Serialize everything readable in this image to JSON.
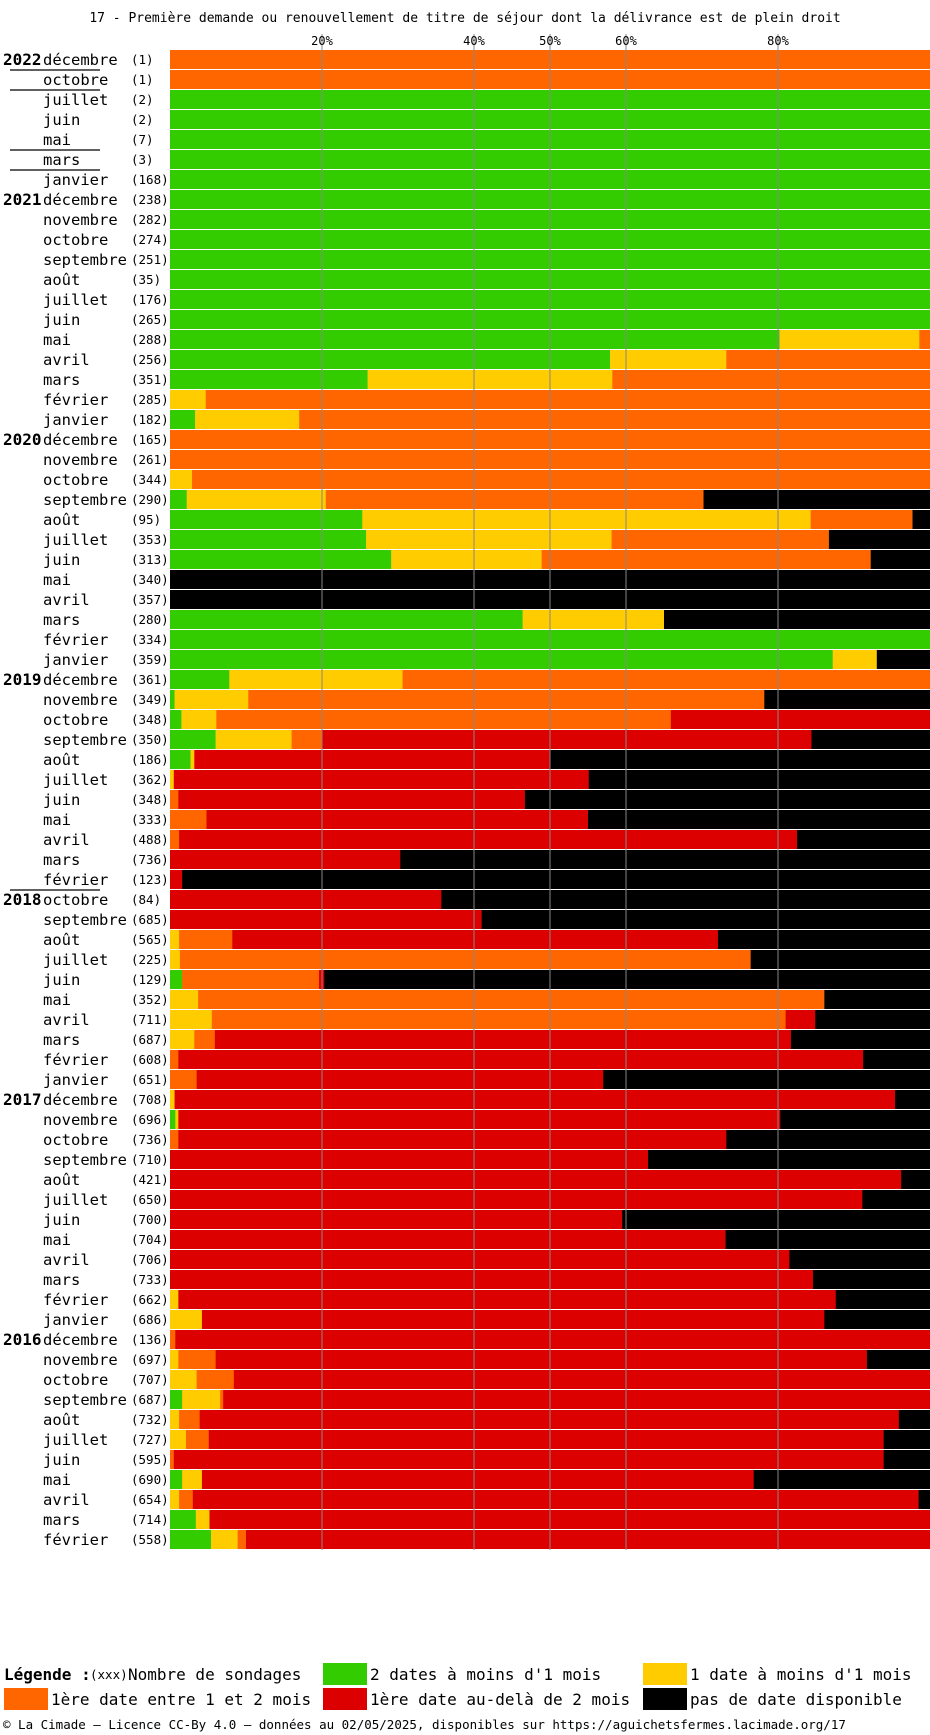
{
  "colors": {
    "two_dates": "#33cc00",
    "one_date": "#ffcc00",
    "first_1_2": "#ff6600",
    "first_over_2": "#dd0000",
    "none": "#000000",
    "grid": "#888888"
  },
  "legend": {
    "title": "Légende :",
    "count_label": "(xxx)",
    "count_text": "Nombre de sondages",
    "items": [
      {
        "key": "two_dates",
        "label": "2 dates à moins d'1 mois"
      },
      {
        "key": "one_date",
        "label": "1 date à moins d'1 mois"
      },
      {
        "key": "first_1_2",
        "label": "1ère date entre 1 et 2 mois"
      },
      {
        "key": "first_over_2",
        "label": "1ère date au-delà de 2 mois"
      },
      {
        "key": "none",
        "label": "pas de date disponible"
      }
    ]
  },
  "footer": "© La Cimade – Licence CC-By 4.0 – données au 02/05/2025, disponibles sur https://aguichetsfermes.lacimade.org/17",
  "chart_data": {
    "type": "bar",
    "orientation": "horizontal-stacked-percent",
    "title": "17 - Première demande ou renouvellement de titre de séjour dont la délivrance est de plein droit",
    "x_ticks": [
      "20%",
      "40%",
      "50%",
      "60%",
      "80%"
    ],
    "x_tick_values": [
      20,
      40,
      50,
      60,
      80
    ],
    "xlim": [
      0,
      100
    ],
    "series_order": [
      "two_dates",
      "one_date",
      "first_1_2",
      "first_over_2",
      "none"
    ],
    "rows": [
      {
        "year": "2022",
        "month": "décembre",
        "count": "(1)",
        "values": [
          0,
          0,
          100,
          0,
          0
        ]
      },
      {
        "sep": true
      },
      {
        "month": "octobre",
        "count": "(1)",
        "values": [
          0,
          0,
          100,
          0,
          0
        ]
      },
      {
        "sep": true
      },
      {
        "month": "juillet",
        "count": "(2)",
        "values": [
          100,
          0,
          0,
          0,
          0
        ]
      },
      {
        "month": "juin",
        "count": "(2)",
        "values": [
          100,
          0,
          0,
          0,
          0
        ]
      },
      {
        "month": "mai",
        "count": "(7)",
        "values": [
          100,
          0,
          0,
          0,
          0
        ]
      },
      {
        "sep": true
      },
      {
        "month": "mars",
        "count": "(3)",
        "values": [
          100,
          0,
          0,
          0,
          0
        ]
      },
      {
        "sep": true
      },
      {
        "month": "janvier",
        "count": "(168)",
        "values": [
          100,
          0,
          0,
          0,
          0
        ]
      },
      {
        "year": "2021",
        "month": "décembre",
        "count": "(238)",
        "values": [
          100,
          0,
          0,
          0,
          0
        ]
      },
      {
        "month": "novembre",
        "count": "(282)",
        "values": [
          100,
          0,
          0,
          0,
          0
        ]
      },
      {
        "month": "octobre",
        "count": "(274)",
        "values": [
          100,
          0,
          0,
          0,
          0
        ]
      },
      {
        "month": "septembre",
        "count": "(251)",
        "values": [
          100,
          0,
          0,
          0,
          0
        ]
      },
      {
        "month": "août",
        "count": "(35)",
        "values": [
          100,
          0,
          0,
          0,
          0
        ]
      },
      {
        "month": "juillet",
        "count": "(176)",
        "values": [
          100,
          0,
          0,
          0,
          0
        ]
      },
      {
        "month": "juin",
        "count": "(265)",
        "values": [
          100,
          0,
          0,
          0,
          0
        ]
      },
      {
        "month": "mai",
        "count": "(288)",
        "values": [
          80.2,
          18.4,
          1.4,
          0,
          0
        ]
      },
      {
        "month": "avril",
        "count": "(256)",
        "values": [
          57.9,
          15.3,
          26.8,
          0,
          0
        ]
      },
      {
        "month": "mars",
        "count": "(351)",
        "values": [
          26,
          32.2,
          41.8,
          0,
          0
        ]
      },
      {
        "month": "février",
        "count": "(285)",
        "values": [
          0,
          4.7,
          95.3,
          0,
          0
        ]
      },
      {
        "month": "janvier",
        "count": "(182)",
        "values": [
          3.3,
          13.7,
          83,
          0,
          0
        ]
      },
      {
        "year": "2020",
        "month": "décembre",
        "count": "(165)",
        "values": [
          0,
          0,
          100,
          0,
          0
        ]
      },
      {
        "month": "novembre",
        "count": "(261)",
        "values": [
          0,
          0,
          100,
          0,
          0
        ]
      },
      {
        "month": "octobre",
        "count": "(344)",
        "values": [
          0,
          2.9,
          97.1,
          0,
          0
        ]
      },
      {
        "month": "septembre",
        "count": "(290)",
        "values": [
          2.2,
          18.3,
          49.7,
          0,
          29.8
        ]
      },
      {
        "month": "août",
        "count": "(95)",
        "values": [
          25.3,
          59,
          13.4,
          0,
          2.3
        ]
      },
      {
        "month": "juillet",
        "count": "(353)",
        "values": [
          25.8,
          32.3,
          28.6,
          0,
          13.3
        ]
      },
      {
        "month": "juin",
        "count": "(313)",
        "values": [
          29.1,
          19.8,
          43.3,
          0,
          7.8
        ]
      },
      {
        "month": "mai",
        "count": "(340)",
        "values": [
          0,
          0,
          0,
          0,
          100
        ]
      },
      {
        "month": "avril",
        "count": "(357)",
        "values": [
          0,
          0,
          0,
          0,
          100
        ]
      },
      {
        "month": "mars",
        "count": "(280)",
        "values": [
          46.4,
          18.6,
          0,
          0,
          35
        ]
      },
      {
        "month": "février",
        "count": "(334)",
        "values": [
          100,
          0,
          0,
          0,
          0
        ]
      },
      {
        "month": "janvier",
        "count": "(359)",
        "values": [
          87.2,
          5.8,
          0,
          0,
          7
        ]
      },
      {
        "year": "2019",
        "month": "décembre",
        "count": "(361)",
        "values": [
          7.8,
          22.8,
          69.4,
          0,
          0
        ]
      },
      {
        "month": "novembre",
        "count": "(349)",
        "values": [
          0.6,
          9.7,
          67.9,
          0,
          21.8
        ]
      },
      {
        "month": "octobre",
        "count": "(348)",
        "values": [
          1.5,
          4.6,
          59.8,
          34.1,
          0
        ]
      },
      {
        "month": "septembre",
        "count": "(350)",
        "values": [
          6,
          10,
          4,
          64.4,
          15.6
        ]
      },
      {
        "month": "août",
        "count": "(186)",
        "values": [
          2.7,
          0.5,
          0,
          46.8,
          50
        ]
      },
      {
        "month": "juillet",
        "count": "(362)",
        "values": [
          0,
          0.5,
          0,
          54.6,
          44.9
        ]
      },
      {
        "month": "juin",
        "count": "(348)",
        "values": [
          0,
          0,
          1.1,
          45.6,
          53.3
        ]
      },
      {
        "month": "mai",
        "count": "(333)",
        "values": [
          0,
          0,
          4.8,
          50.2,
          45
        ]
      },
      {
        "month": "avril",
        "count": "(488)",
        "values": [
          0,
          0,
          1.2,
          81.3,
          17.5
        ]
      },
      {
        "month": "mars",
        "count": "(736)",
        "values": [
          0,
          0,
          0,
          30.3,
          69.7
        ]
      },
      {
        "month": "février",
        "count": "(123)",
        "values": [
          0,
          0,
          0,
          1.6,
          98.4
        ]
      },
      {
        "sep": true
      },
      {
        "year": "2018",
        "month": "octobre",
        "count": "(84)",
        "values": [
          0,
          0,
          0,
          35.7,
          64.3
        ]
      },
      {
        "month": "septembre",
        "count": "(685)",
        "values": [
          0,
          0,
          0,
          41,
          59
        ]
      },
      {
        "month": "août",
        "count": "(565)",
        "values": [
          0,
          1.2,
          7,
          63.9,
          27.9
        ]
      },
      {
        "month": "juillet",
        "count": "(225)",
        "values": [
          0,
          1.3,
          75.1,
          0,
          23.6
        ]
      },
      {
        "month": "juin",
        "count": "(129)",
        "values": [
          1.6,
          0,
          18,
          0.7,
          79.7
        ]
      },
      {
        "month": "mai",
        "count": "(352)",
        "values": [
          0,
          3.7,
          82.4,
          0,
          13.9
        ]
      },
      {
        "month": "avril",
        "count": "(711)",
        "values": [
          0,
          5.5,
          75.5,
          3.9,
          15.1
        ]
      },
      {
        "month": "mars",
        "count": "(687)",
        "values": [
          0,
          3.2,
          2.7,
          75.8,
          18.3
        ]
      },
      {
        "month": "février",
        "count": "(608)",
        "values": [
          0,
          0,
          1.1,
          90.1,
          8.8
        ]
      },
      {
        "month": "janvier",
        "count": "(651)",
        "values": [
          0,
          0,
          3.5,
          53.5,
          43
        ]
      },
      {
        "year": "2017",
        "month": "décembre",
        "count": "(708)",
        "values": [
          0,
          0.6,
          0,
          94.8,
          4.6
        ]
      },
      {
        "month": "novembre",
        "count": "(696)",
        "values": [
          0.7,
          0.4,
          0,
          79.2,
          19.7
        ]
      },
      {
        "month": "octobre",
        "count": "(736)",
        "values": [
          0,
          0,
          1.1,
          72.1,
          26.8
        ]
      },
      {
        "month": "septembre",
        "count": "(710)",
        "values": [
          0,
          0,
          0,
          62.9,
          37.1
        ]
      },
      {
        "month": "août",
        "count": "(421)",
        "values": [
          0,
          0,
          0,
          96.2,
          3.8
        ]
      },
      {
        "month": "juillet",
        "count": "(650)",
        "values": [
          0,
          0,
          0,
          91.1,
          8.9
        ]
      },
      {
        "month": "juin",
        "count": "(700)",
        "values": [
          0,
          0,
          0,
          59.5,
          40.5
        ]
      },
      {
        "month": "mai",
        "count": "(704)",
        "values": [
          0,
          0,
          0,
          73.1,
          26.9
        ]
      },
      {
        "month": "avril",
        "count": "(706)",
        "values": [
          0,
          0,
          0,
          81.5,
          18.5
        ]
      },
      {
        "month": "mars",
        "count": "(733)",
        "values": [
          0,
          0,
          0,
          84.6,
          15.4
        ]
      },
      {
        "month": "février",
        "count": "(662)",
        "values": [
          0,
          1.1,
          0,
          86.5,
          12.4
        ]
      },
      {
        "month": "janvier",
        "count": "(686)",
        "values": [
          0,
          4.2,
          0,
          81.9,
          13.9
        ]
      },
      {
        "year": "2016",
        "month": "décembre",
        "count": "(136)",
        "values": [
          0,
          0,
          0.7,
          99.3,
          0
        ]
      },
      {
        "month": "novembre",
        "count": "(697)",
        "values": [
          0,
          1.1,
          4.9,
          85.7,
          8.3
        ]
      },
      {
        "month": "octobre",
        "count": "(707)",
        "values": [
          0,
          3.5,
          4.9,
          91.6,
          0
        ]
      },
      {
        "month": "septembre",
        "count": "(687)",
        "values": [
          1.6,
          5,
          0.4,
          93,
          0
        ]
      },
      {
        "month": "août",
        "count": "(732)",
        "values": [
          0,
          1.2,
          2.7,
          92,
          4.1
        ]
      },
      {
        "month": "juillet",
        "count": "(727)",
        "values": [
          0,
          2.1,
          3,
          88.8,
          6.1
        ]
      },
      {
        "month": "juin",
        "count": "(595)",
        "values": [
          0,
          0,
          0.5,
          93.4,
          6.1
        ]
      },
      {
        "month": "mai",
        "count": "(690)",
        "values": [
          1.6,
          2.6,
          0,
          72.6,
          23.2
        ]
      },
      {
        "month": "avril",
        "count": "(654)",
        "values": [
          0,
          1.2,
          1.8,
          95.5,
          1.5
        ]
      },
      {
        "month": "mars",
        "count": "(714)",
        "values": [
          3.4,
          1.8,
          0,
          94.8,
          0
        ]
      },
      {
        "month": "février",
        "count": "(558)",
        "values": [
          5.4,
          3.5,
          1.1,
          90,
          0
        ]
      }
    ]
  }
}
